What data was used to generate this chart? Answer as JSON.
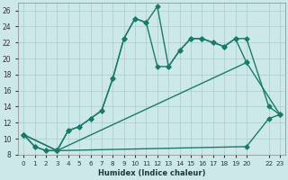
{
  "xlabel": "Humidex (Indice chaleur)",
  "bg_color": "#cce8e8",
  "line_color": "#1a7a6a",
  "grid_color": "#aacccc",
  "xlim": [
    -0.5,
    23.5
  ],
  "ylim": [
    8,
    27
  ],
  "yticks": [
    8,
    10,
    12,
    14,
    16,
    18,
    20,
    22,
    24,
    26
  ],
  "series1_x": [
    0,
    1,
    2,
    3,
    4,
    5,
    6,
    7,
    8,
    9,
    10,
    11,
    12,
    13,
    14,
    15,
    16,
    17,
    18,
    19,
    20,
    22,
    23
  ],
  "series1_y": [
    10.5,
    9.0,
    8.5,
    8.5,
    11.0,
    11.5,
    12.5,
    13.5,
    17.5,
    22.5,
    25.0,
    24.5,
    26.5,
    19.0,
    21.0,
    22.5,
    22.5,
    22.0,
    21.5,
    22.5,
    22.5,
    14.0,
    13.0
  ],
  "series2_x": [
    0,
    1,
    2,
    3,
    4,
    5,
    6,
    7,
    8,
    9,
    10,
    11,
    12,
    13,
    14,
    15,
    16,
    17,
    18,
    19,
    20
  ],
  "series2_y": [
    10.5,
    9.0,
    8.5,
    8.5,
    11.0,
    11.5,
    12.5,
    13.5,
    17.5,
    22.5,
    25.0,
    24.5,
    19.0,
    19.0,
    21.0,
    22.5,
    22.5,
    22.0,
    21.5,
    22.5,
    19.5
  ],
  "series3_x": [
    0,
    3,
    20,
    23
  ],
  "series3_y": [
    10.5,
    8.5,
    19.5,
    13.0
  ],
  "series4_x": [
    0,
    3,
    20,
    22,
    23
  ],
  "series4_y": [
    10.5,
    8.5,
    9.0,
    12.5,
    13.0
  ]
}
